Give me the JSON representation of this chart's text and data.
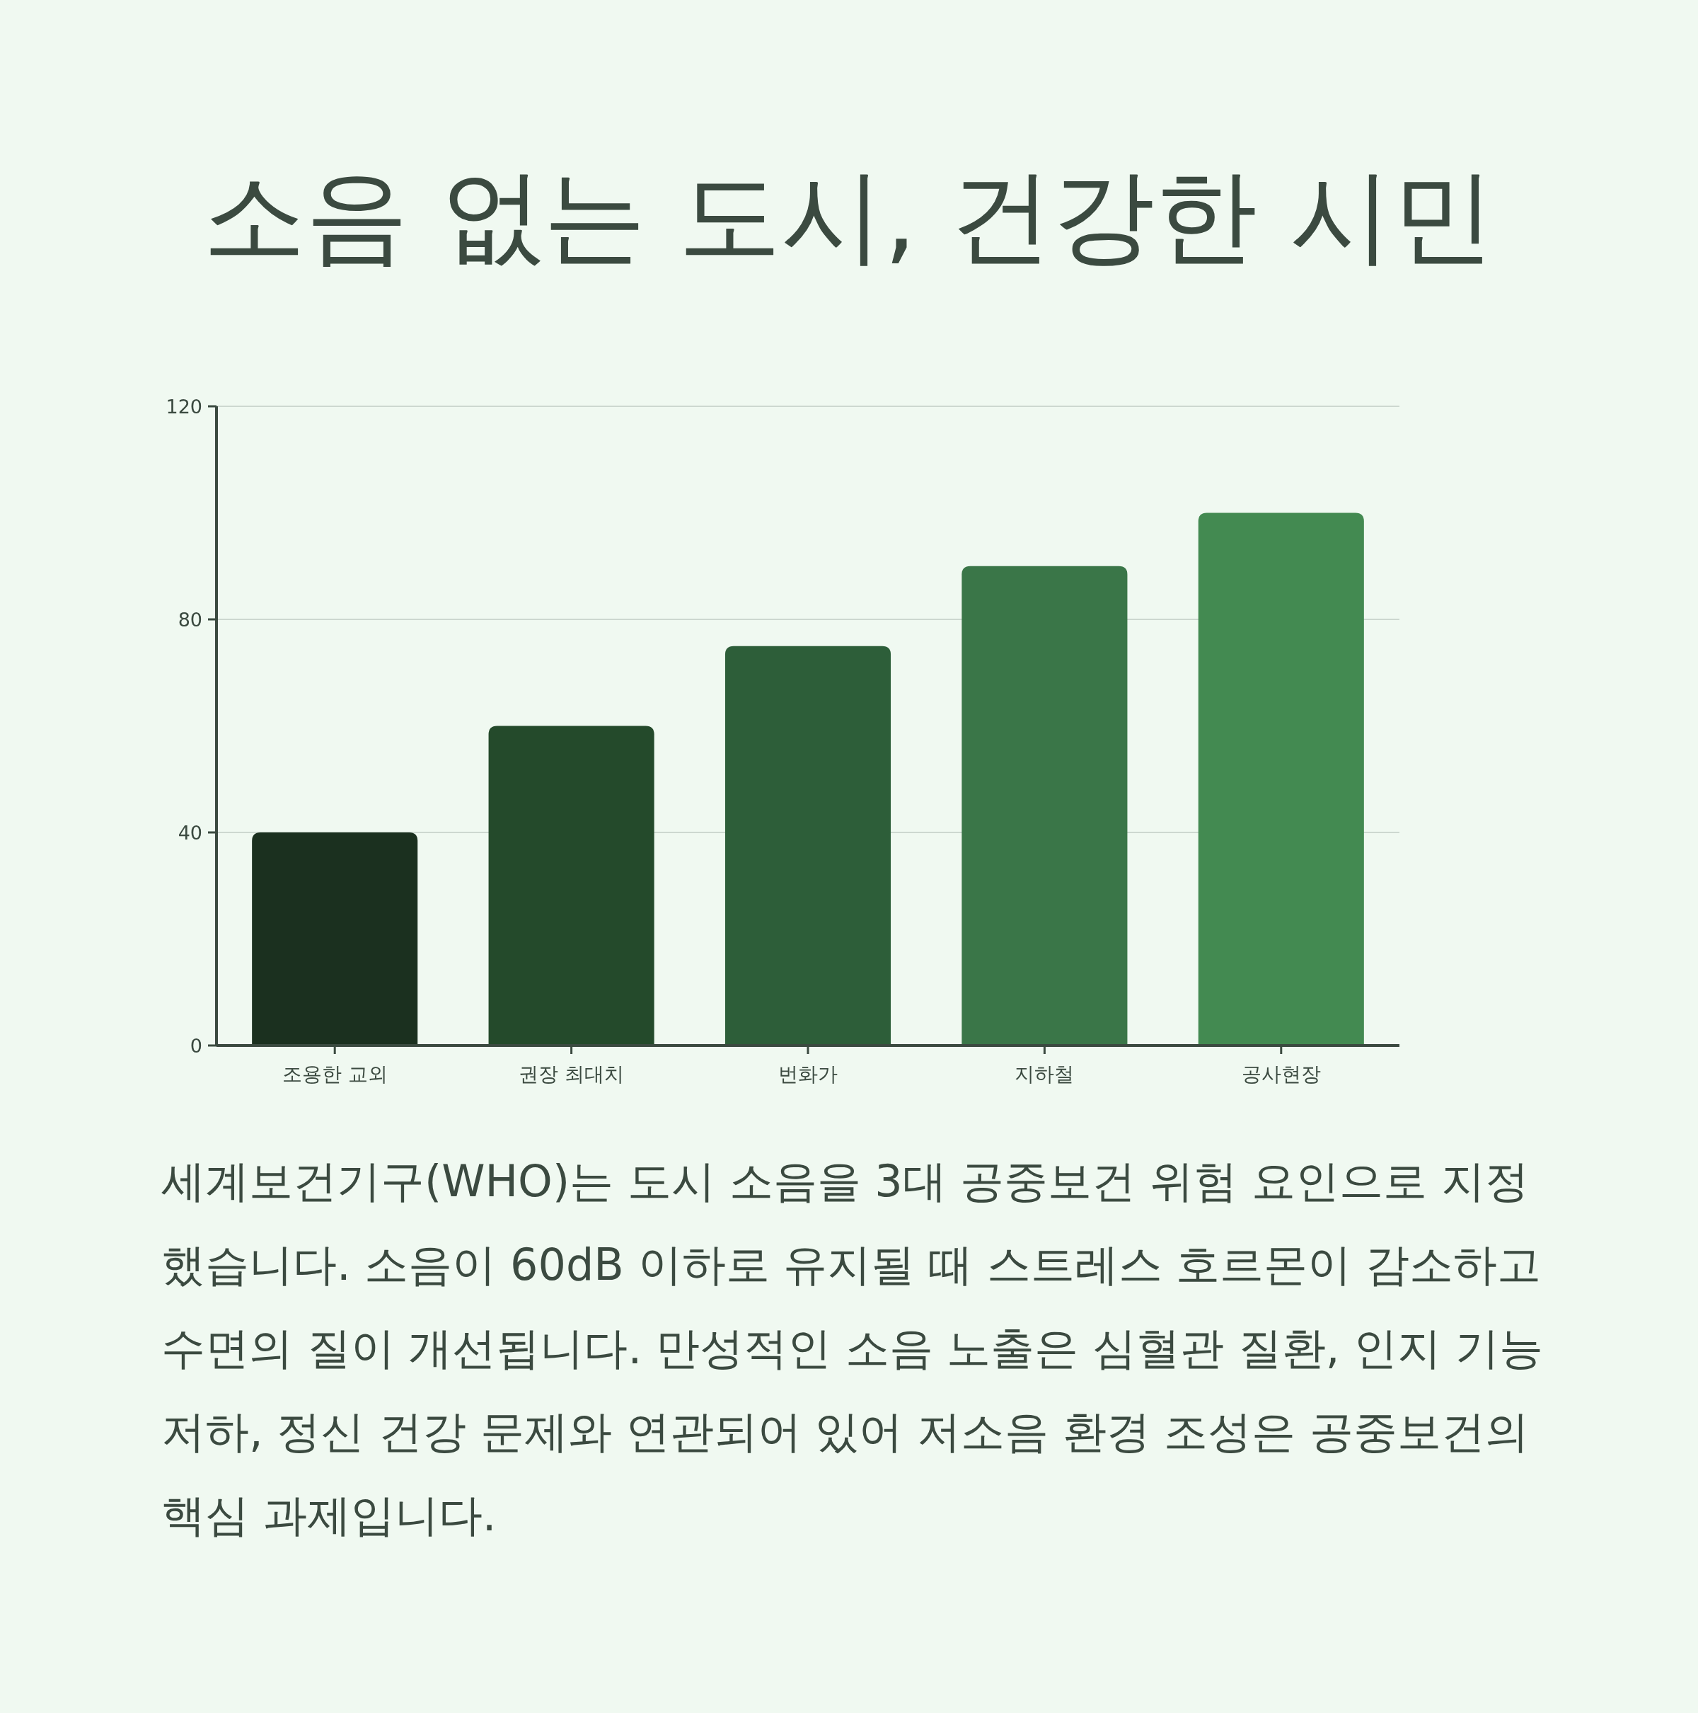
{
  "chart_data": {
    "type": "bar",
    "title": "소음 없는 도시, 건강한 시민",
    "categories": [
      "조용한 교외",
      "권장 최대치",
      "번화가",
      "지하철",
      "공사현장"
    ],
    "values": [
      40,
      60,
      75,
      90,
      100
    ],
    "colors": [
      "#1b301f",
      "#244a2b",
      "#2d5e39",
      "#3a7648",
      "#438a51"
    ],
    "ylim": [
      0,
      120
    ],
    "yticks": [
      0,
      40,
      80,
      120
    ],
    "grid": "y",
    "annotations": [
      "세계보건기구(WHO)는 도시 소음을 3대 공중보건 위험 요인으로 지정했습니다. 소음이 60dB 이하로 유지될 때 스트레스 호르몬이 감소하고 수면의 질이 개선됩니다. 만성적인 소음 노출은 심혈관 질환, 인지 기능 저하, 정신 건강 문제와 연관되어 있어 저소음 환경 조성은 공중보건의 핵심 과제입니다."
    ]
  }
}
